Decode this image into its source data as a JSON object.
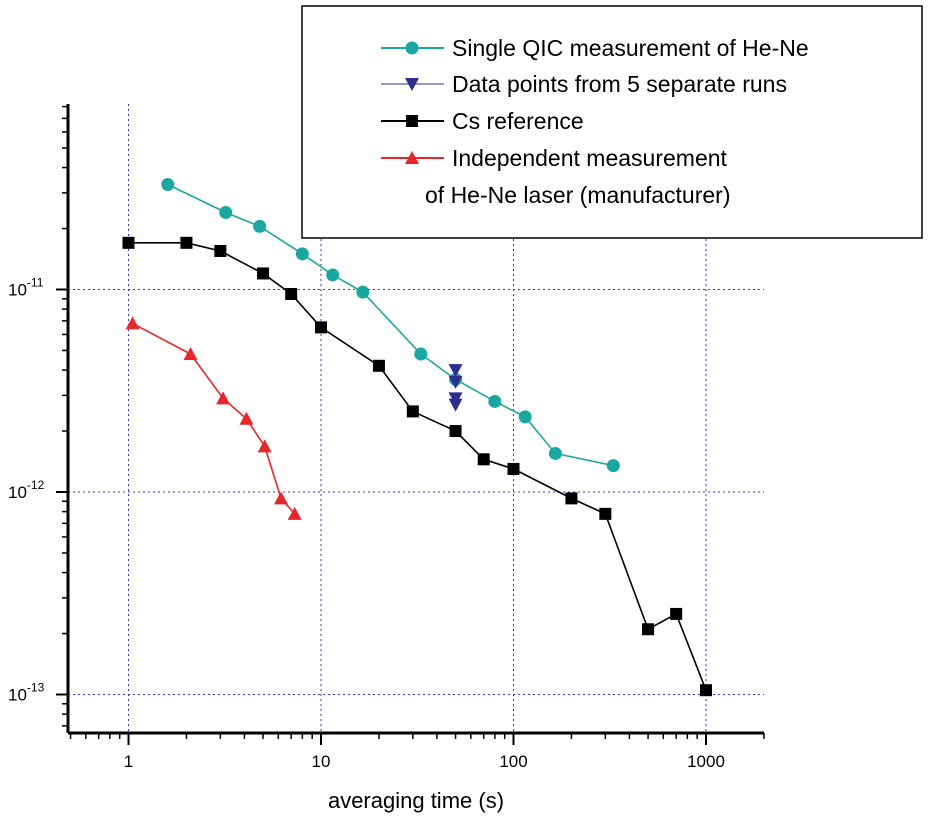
{
  "chart_data": {
    "type": "scatter",
    "xlabel": "averaging time (s)",
    "ylabel": "",
    "x_scale": "log",
    "y_scale": "log",
    "xlim": [
      0.5,
      2000
    ],
    "ylim": [
      7e-14,
      1.2e-10
    ],
    "grid": true,
    "legend_position": "top-right",
    "x_tick_labels": [
      {
        "value": 1,
        "label": "1"
      },
      {
        "value": 10,
        "label": "10"
      },
      {
        "value": 100,
        "label": "100"
      },
      {
        "value": 1000,
        "label": "1000"
      }
    ],
    "y_tick_labels": [
      {
        "value": 1e-11,
        "mantissa": "10",
        "exponent": "-11"
      },
      {
        "value": 1e-12,
        "mantissa": "10",
        "exponent": "-12"
      },
      {
        "value": 1e-13,
        "mantissa": "10",
        "exponent": "-13"
      }
    ],
    "series": [
      {
        "name": "Single QIC measurement of He-Ne",
        "color": "#1aa7a1",
        "marker": "circle",
        "line": true,
        "points": [
          [
            1.6,
            3.3e-11
          ],
          [
            3.2,
            2.4e-11
          ],
          [
            4.8,
            2.05e-11
          ],
          [
            8,
            1.5e-11
          ],
          [
            11.5,
            1.18e-11
          ],
          [
            16.5,
            9.7e-12
          ],
          [
            33,
            4.8e-12
          ],
          [
            50,
            3.6e-12
          ],
          [
            80,
            2.8e-12
          ],
          [
            115,
            2.35e-12
          ],
          [
            165,
            1.55e-12
          ],
          [
            330,
            1.35e-12
          ]
        ]
      },
      {
        "name": "Data points from 5 separate runs",
        "color": "#2b2f8f",
        "marker": "triangle-down",
        "line": false,
        "points": [
          [
            50,
            4e-12
          ],
          [
            50,
            3.5e-12
          ],
          [
            50,
            2.9e-12
          ],
          [
            50,
            2.7e-12
          ]
        ]
      },
      {
        "name": "Cs reference",
        "color": "#000000",
        "marker": "square",
        "line": true,
        "points": [
          [
            1,
            1.7e-11
          ],
          [
            2,
            1.7e-11
          ],
          [
            3,
            1.55e-11
          ],
          [
            5,
            1.2e-11
          ],
          [
            7,
            9.5e-12
          ],
          [
            10,
            6.5e-12
          ],
          [
            20,
            4.2e-12
          ],
          [
            30,
            2.5e-12
          ],
          [
            50,
            2e-12
          ],
          [
            70,
            1.45e-12
          ],
          [
            100,
            1.3e-12
          ],
          [
            200,
            9.3e-13
          ],
          [
            300,
            7.8e-13
          ],
          [
            500,
            2.1e-13
          ],
          [
            700,
            2.5e-13
          ],
          [
            1000,
            1.05e-13
          ]
        ]
      },
      {
        "name": "Independent measurement\nof He-Ne laser (manufacturer)",
        "color": "#e8252a",
        "marker": "triangle-up",
        "line": true,
        "points": [
          [
            1.05,
            6.8e-12
          ],
          [
            2.1,
            4.8e-12
          ],
          [
            3.1,
            2.9e-12
          ],
          [
            4.1,
            2.3e-12
          ],
          [
            5.1,
            1.68e-12
          ],
          [
            6.2,
            9.3e-13
          ],
          [
            7.3,
            7.8e-13
          ]
        ]
      }
    ],
    "legend_lines": [
      "Single QIC measurement of He-Ne",
      "Data points from 5 separate runs",
      "Cs reference",
      "Independent measurement",
      "of He-Ne laser (manufacturer)"
    ]
  }
}
